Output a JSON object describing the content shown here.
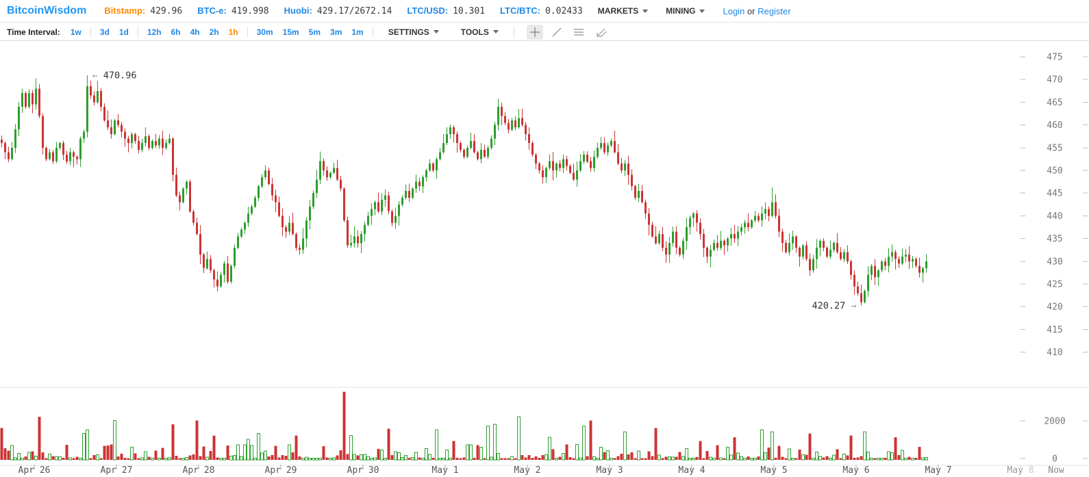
{
  "header": {
    "logo": "BitcoinWisdom",
    "tickers": [
      {
        "label": "Bitstamp:",
        "value": "429.96",
        "label_color": "#ff8a00"
      },
      {
        "label": "BTC-e:",
        "value": "419.998",
        "label_color": "#1e88e5"
      },
      {
        "label": "Huobi:",
        "value": "429.17/2672.14",
        "label_color": "#1e88e5"
      },
      {
        "label": "LTC/USD:",
        "value": "10.301",
        "label_color": "#1e88e5"
      },
      {
        "label": "LTC/BTC:",
        "value": "0.02433",
        "label_color": "#1e88e5"
      }
    ],
    "menus": [
      {
        "label": "MARKETS"
      },
      {
        "label": "MINING"
      }
    ],
    "auth": {
      "login": "Login",
      "separator": "or",
      "register": "Register"
    }
  },
  "toolbar": {
    "time_interval_label": "Time Interval:",
    "interval_groups": [
      [
        "1w"
      ],
      [
        "3d",
        "1d"
      ],
      [
        "12h",
        "6h",
        "4h",
        "2h",
        "1h"
      ],
      [
        "30m",
        "15m",
        "5m",
        "3m",
        "1m"
      ]
    ],
    "selected_interval": "1h",
    "menus": [
      "SETTINGS",
      "TOOLS"
    ],
    "tool_icons": [
      "crosshair-icon",
      "trendline-icon",
      "horizontal-lines-icon",
      "angle-arrow-icon"
    ]
  },
  "chart_data": {
    "type": "candlestick",
    "interval": "1h",
    "price_axis": {
      "ticks": [
        475,
        470,
        465,
        460,
        455,
        450,
        445,
        440,
        435,
        430,
        425,
        420,
        415,
        410
      ]
    },
    "volume_axis": {
      "ticks": [
        2000,
        0
      ]
    },
    "x_axis": {
      "day_labels": [
        "Apr 26",
        "Apr 27",
        "Apr 28",
        "Apr 29",
        "Apr 30",
        "May 1",
        "May 2",
        "May 3",
        "May 4",
        "May 5",
        "May 6",
        "May 7"
      ],
      "future_label": {
        "prefix": "May",
        "suffix": "8"
      },
      "now_label": "Now"
    },
    "annotations": {
      "high": {
        "arrow": "←",
        "text": "470.96",
        "price": 470.96,
        "candle_index": 25
      },
      "low": {
        "text": "420.27",
        "arrow": "→",
        "price": 420.27,
        "candle_index": 251
      }
    },
    "colors": {
      "up": "#2d9e2d",
      "down": "#cc3333",
      "axis_text": "#777",
      "date_text": "#555",
      "faded_text": "#c8c8c8",
      "dash": "#bbbbbb",
      "separator": "#e0e0e0"
    },
    "candles": {
      "spacing_px": 5,
      "closes": [
        456,
        454,
        452.5,
        455,
        459,
        464,
        467,
        464,
        467,
        464.5,
        468,
        462,
        455,
        452.5,
        454,
        452,
        455,
        456,
        453.5,
        452,
        454,
        453,
        452.5,
        457,
        458.5,
        468.5,
        466.5,
        465,
        467.5,
        464,
        461,
        459.5,
        458,
        461,
        460,
        458.5,
        457,
        456,
        458,
        456.5,
        454.5,
        456,
        457.5,
        455,
        456.5,
        455.5,
        457,
        455,
        456,
        457,
        449,
        444.5,
        443,
        446,
        447.5,
        441,
        438.5,
        436,
        431.5,
        428.5,
        430.5,
        428,
        426,
        424.5,
        427,
        429.5,
        425.5,
        429,
        433,
        435.5,
        437,
        438.5,
        440.5,
        442,
        444,
        446.5,
        448.5,
        450,
        447,
        444.5,
        443,
        440,
        437.5,
        436.5,
        438.5,
        436,
        433,
        432.5,
        435,
        439,
        442,
        445,
        448,
        452,
        450,
        448.5,
        449.5,
        450.5,
        448,
        446,
        439,
        433.5,
        434,
        435.5,
        434,
        436,
        438,
        440,
        441.5,
        443,
        441,
        443.5,
        444.5,
        441,
        438.5,
        440,
        442.5,
        444,
        445.5,
        444,
        446,
        447.5,
        446.5,
        448.5,
        450,
        451.5,
        450,
        452.5,
        454,
        456,
        458,
        459.5,
        458,
        456,
        454.5,
        453,
        455,
        456.5,
        454,
        452.5,
        454.5,
        453,
        455,
        457,
        460,
        464,
        462,
        460.5,
        459,
        461,
        459.5,
        461.5,
        460,
        458,
        456,
        453.5,
        451.5,
        450,
        448.5,
        450.5,
        452,
        450,
        451.5,
        450.5,
        452.5,
        451,
        449.5,
        448,
        450,
        452,
        453.5,
        452,
        450.5,
        453,
        455,
        456,
        454,
        455.5,
        456.5,
        454,
        451.5,
        450,
        451.5,
        449,
        446.5,
        444,
        445.5,
        443,
        440.5,
        438,
        435.5,
        434,
        436,
        433,
        431.5,
        434,
        436.5,
        433,
        431.5,
        434.5,
        437.5,
        439.5,
        440.5,
        438.5,
        436,
        433,
        431,
        432.5,
        434,
        433,
        434.5,
        433.5,
        435,
        436,
        435,
        436.5,
        437.5,
        438.5,
        437.5,
        439,
        440,
        439,
        440.5,
        441.5,
        440,
        443,
        440,
        436.5,
        434,
        432,
        434,
        435.5,
        433,
        431,
        433.5,
        430.5,
        428,
        430.5,
        433,
        434.5,
        433,
        431,
        432.5,
        434,
        432,
        430.5,
        432,
        430,
        427,
        424.5,
        423,
        421,
        423.5,
        427,
        429,
        426.5,
        428,
        430,
        429,
        431,
        432,
        430.5,
        429.5,
        431,
        431.5,
        430,
        430.5,
        429,
        427.5,
        428.5,
        430
      ],
      "overrides": [
        {
          "index": 25,
          "high": 470.96
        },
        {
          "index": 28,
          "high": 469.7
        },
        {
          "index": 225,
          "high": 446.2
        },
        {
          "index": 251,
          "low": 420.27
        }
      ]
    },
    "volume_spikes": [
      [
        0,
        1700
      ],
      [
        11,
        2300
      ],
      [
        24,
        1400
      ],
      [
        25,
        1600
      ],
      [
        33,
        2100
      ],
      [
        50,
        1900
      ],
      [
        57,
        2100
      ],
      [
        62,
        1300
      ],
      [
        72,
        1100
      ],
      [
        75,
        1400
      ],
      [
        86,
        1300
      ],
      [
        100,
        3620
      ],
      [
        102,
        1300
      ],
      [
        113,
        1650
      ],
      [
        127,
        1600
      ],
      [
        132,
        1000
      ],
      [
        142,
        1800
      ],
      [
        144,
        1900
      ],
      [
        151,
        2300
      ],
      [
        160,
        1200
      ],
      [
        170,
        1800
      ],
      [
        172,
        2100
      ],
      [
        182,
        1500
      ],
      [
        191,
        1700
      ],
      [
        204,
        1000
      ],
      [
        214,
        1200
      ],
      [
        222,
        1600
      ],
      [
        225,
        1500
      ],
      [
        236,
        1400
      ],
      [
        248,
        1300
      ],
      [
        252,
        1500
      ],
      [
        261,
        1200
      ]
    ]
  }
}
